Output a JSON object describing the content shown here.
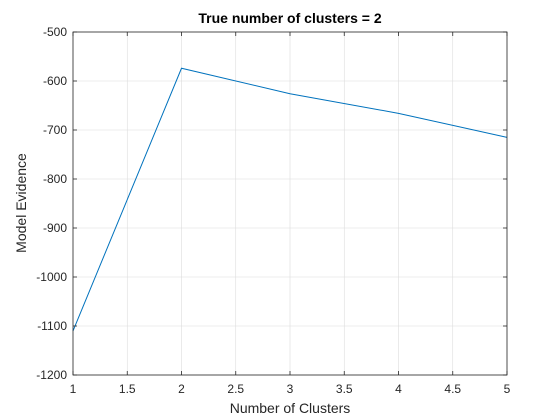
{
  "chart_data": {
    "type": "line",
    "title": "True number of clusters = 2",
    "xlabel": "Number of Clusters",
    "ylabel": "Model Evidence",
    "xlim": [
      1,
      5
    ],
    "ylim": [
      -1200,
      -500
    ],
    "xticks": [
      1,
      1.5,
      2,
      2.5,
      3,
      3.5,
      4,
      4.5,
      5
    ],
    "xtick_labels": [
      "1",
      "1.5",
      "2",
      "2.5",
      "3",
      "3.5",
      "4",
      "4.5",
      "5"
    ],
    "yticks": [
      -1200,
      -1100,
      -1000,
      -900,
      -800,
      -700,
      -600,
      -500
    ],
    "ytick_labels": [
      "-1200",
      "-1100",
      "-1000",
      "-900",
      "-800",
      "-700",
      "-600",
      "-500"
    ],
    "grid": true,
    "series": [
      {
        "x": [
          1,
          2,
          3,
          4,
          5
        ],
        "values": [
          -1110,
          -574,
          -626,
          -666,
          -715
        ],
        "color": "#0072BD"
      }
    ]
  }
}
